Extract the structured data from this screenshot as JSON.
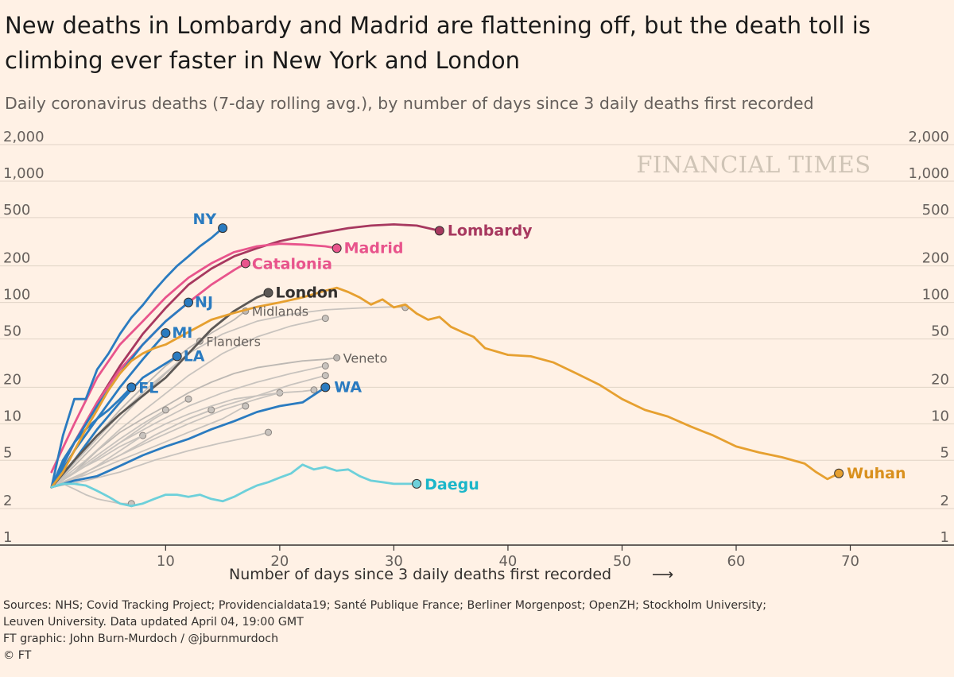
{
  "header": {
    "title": "New deaths in Lombardy and Madrid are flattening off, but the death toll is climbing ever faster in New York and London",
    "subtitle": "Daily coronavirus deaths (7-day rolling avg.), by number of days since 3 daily deaths first recorded"
  },
  "footer": {
    "xlabel": "Number of days since 3 daily deaths first recorded",
    "arrow": "⟶",
    "source_line1": "Sources: NHS; Covid Tracking Project; Providencialdata19; Santé Publique France; Berliner Morgenpost; OpenZH; Stockholm University;",
    "source_line2": "Leuven University. Data updated April 04, 19:00 GMT",
    "credit": "FT graphic: John Burn-Murdoch / @jburnmurdoch",
    "copyright": "© FT"
  },
  "watermark": "FINANCIAL TIMES",
  "chart_data": {
    "type": "line",
    "y_scale": "log",
    "xlim": [
      0,
      77
    ],
    "ylim": [
      1,
      2000
    ],
    "x_ticks": [
      10,
      20,
      30,
      40,
      50,
      60,
      70
    ],
    "y_ticks": [
      1,
      2,
      5,
      10,
      20,
      50,
      100,
      200,
      500,
      1000,
      2000
    ],
    "y_tick_labels": [
      "1",
      "2",
      "5",
      "10",
      "20",
      "50",
      "100",
      "200",
      "500",
      "1,000",
      "2,000"
    ],
    "grid": "horizontal",
    "series": [
      {
        "name": "Lombardy",
        "color": "#a7385f",
        "label_color": "#a7385f",
        "bold": true,
        "emph": true,
        "x": [
          0,
          2,
          4,
          6,
          8,
          10,
          12,
          14,
          16,
          18,
          20,
          22,
          24,
          26,
          28,
          30,
          32,
          34
        ],
        "y": [
          3,
          7,
          15,
          30,
          55,
          90,
          140,
          190,
          240,
          280,
          320,
          350,
          380,
          410,
          430,
          440,
          430,
          390
        ]
      },
      {
        "name": "Madrid",
        "color": "#e8548c",
        "label_color": "#e8548c",
        "bold": true,
        "emph": true,
        "x": [
          0,
          2,
          4,
          6,
          8,
          10,
          12,
          14,
          16,
          18,
          20,
          22,
          24,
          25
        ],
        "y": [
          4,
          10,
          24,
          45,
          70,
          110,
          160,
          210,
          260,
          290,
          305,
          300,
          290,
          280
        ]
      },
      {
        "name": "Catalonia",
        "color": "#e8548c",
        "label_color": "#e8548c",
        "bold": true,
        "emph": true,
        "x": [
          0,
          2,
          4,
          6,
          8,
          10,
          12,
          14,
          16,
          17
        ],
        "y": [
          3,
          7,
          15,
          28,
          45,
          70,
          100,
          140,
          185,
          210
        ]
      },
      {
        "name": "NY",
        "color": "#2a7bc0",
        "label_color": "#2a7bc0",
        "bold": true,
        "emph": true,
        "x": [
          0,
          1,
          2,
          3,
          4,
          5,
          6,
          7,
          8,
          9,
          10,
          11,
          12,
          13,
          14,
          15
        ],
        "y": [
          3,
          8,
          16,
          16,
          28,
          38,
          55,
          75,
          95,
          125,
          160,
          200,
          240,
          290,
          340,
          410
        ]
      },
      {
        "name": "NJ",
        "color": "#2a7bc0",
        "label_color": "#2a7bc0",
        "bold": true,
        "emph": true,
        "x": [
          0,
          2,
          4,
          6,
          8,
          10,
          12
        ],
        "y": [
          3,
          7,
          14,
          26,
          45,
          70,
          100
        ]
      },
      {
        "name": "MI",
        "color": "#2a7bc0",
        "label_color": "#2a7bc0",
        "bold": true,
        "emph": true,
        "x": [
          0,
          2,
          4,
          6,
          8,
          10
        ],
        "y": [
          3,
          6,
          11,
          20,
          34,
          56
        ]
      },
      {
        "name": "LA",
        "color": "#2a7bc0",
        "label_color": "#2a7bc0",
        "bold": true,
        "emph": true,
        "x": [
          0,
          2,
          4,
          6,
          8,
          11
        ],
        "y": [
          3,
          5,
          9,
          15,
          24,
          36
        ]
      },
      {
        "name": "FL",
        "color": "#2a7bc0",
        "label_color": "#2a7bc0",
        "bold": true,
        "emph": true,
        "x": [
          0,
          1,
          2,
          3,
          4,
          5,
          6,
          7
        ],
        "y": [
          3,
          5,
          7,
          9,
          11,
          13,
          16,
          20
        ]
      },
      {
        "name": "WA",
        "color": "#2a7bc0",
        "label_color": "#2a7bc0",
        "bold": true,
        "emph": true,
        "x": [
          0,
          2,
          4,
          6,
          8,
          10,
          12,
          14,
          16,
          18,
          20,
          22,
          24
        ],
        "y": [
          3,
          3.4,
          3.7,
          4.5,
          5.5,
          6.5,
          7.5,
          9,
          10.5,
          12.5,
          14,
          15,
          20
        ]
      },
      {
        "name": "London",
        "color": "#5c5855",
        "label_color": "#33302e",
        "bold": true,
        "emph": true,
        "x": [
          0,
          2,
          4,
          6,
          8,
          10,
          12,
          14,
          16,
          18,
          19
        ],
        "y": [
          3,
          5,
          8,
          12,
          17,
          24,
          38,
          60,
          85,
          110,
          120
        ]
      },
      {
        "name": "Wuhan",
        "color": "#e6a030",
        "label_color": "#d9901d",
        "bold": true,
        "emph": true,
        "x": [
          0,
          1,
          2,
          3,
          4,
          5,
          6,
          7,
          8,
          9,
          10,
          12,
          14,
          16,
          18,
          20,
          22,
          24,
          25,
          26,
          27,
          28,
          29,
          30,
          31,
          32,
          33,
          34,
          35,
          36,
          37,
          38,
          40,
          42,
          44,
          46,
          48,
          50,
          52,
          54,
          56,
          58,
          60,
          62,
          64,
          66,
          67,
          68,
          69
        ],
        "y": [
          3,
          4,
          6,
          9,
          13,
          19,
          26,
          33,
          38,
          42,
          45,
          57,
          72,
          82,
          92,
          100,
          110,
          125,
          132,
          122,
          110,
          96,
          106,
          91,
          96,
          81,
          72,
          76,
          63,
          57,
          52,
          42,
          37,
          36,
          32,
          26,
          21,
          16,
          13,
          11.5,
          9.5,
          8,
          6.5,
          5.8,
          5.3,
          4.7,
          4,
          3.5,
          3.9
        ]
      },
      {
        "name": "Daegu",
        "color": "#6dd0da",
        "label_color": "#1bb6c9",
        "bold": true,
        "emph": true,
        "x": [
          0,
          1,
          2,
          3,
          4,
          5,
          6,
          7,
          8,
          9,
          10,
          11,
          12,
          13,
          14,
          15,
          16,
          17,
          18,
          19,
          20,
          21,
          22,
          23,
          24,
          25,
          26,
          27,
          28,
          29,
          30,
          31,
          32
        ],
        "y": [
          3,
          3.2,
          3.2,
          3.1,
          2.8,
          2.5,
          2.2,
          2.1,
          2.2,
          2.4,
          2.6,
          2.6,
          2.5,
          2.6,
          2.4,
          2.3,
          2.5,
          2.8,
          3.1,
          3.3,
          3.6,
          3.9,
          4.6,
          4.2,
          4.4,
          4.1,
          4.2,
          3.7,
          3.4,
          3.3,
          3.2,
          3.2,
          3.2
        ]
      },
      {
        "name": "Midlands",
        "color": "#bdb8b3",
        "label_color": "#66605c",
        "bold": false,
        "emph": false,
        "x": [
          0,
          2,
          4,
          6,
          8,
          10,
          12,
          14,
          16,
          17
        ],
        "y": [
          3,
          5,
          8,
          13,
          20,
          30,
          42,
          56,
          72,
          85
        ]
      },
      {
        "name": "Flanders",
        "color": "#bdb8b3",
        "label_color": "#66605c",
        "bold": false,
        "emph": false,
        "x": [
          0,
          2,
          4,
          6,
          8,
          10,
          12,
          13
        ],
        "y": [
          3,
          4.5,
          7,
          11,
          17,
          26,
          38,
          48
        ]
      },
      {
        "name": "Veneto",
        "color": "#bdb8b3",
        "label_color": "#66605c",
        "bold": false,
        "emph": false,
        "x": [
          0,
          2,
          4,
          6,
          8,
          10,
          12,
          14,
          16,
          18,
          20,
          22,
          24,
          25
        ],
        "y": [
          3,
          4,
          6,
          8.5,
          11,
          14,
          18,
          22,
          26,
          29,
          31,
          33,
          34,
          35
        ]
      },
      {
        "name": "",
        "color": "#c8c3be",
        "label_color": "#66605c",
        "bold": false,
        "emph": false,
        "x": [
          0,
          3,
          6,
          9,
          12,
          15,
          18,
          21,
          24,
          27,
          30,
          31
        ],
        "y": [
          3,
          6,
          12,
          22,
          38,
          55,
          70,
          80,
          87,
          90,
          92,
          91
        ]
      },
      {
        "name": "",
        "color": "#c8c3be",
        "label_color": "#66605c",
        "bold": false,
        "emph": false,
        "x": [
          0,
          3,
          6,
          9,
          12,
          15,
          18,
          21,
          24
        ],
        "y": [
          3,
          5,
          9,
          15,
          25,
          38,
          52,
          64,
          74
        ]
      },
      {
        "name": "",
        "color": "#c8c3be",
        "label_color": "#66605c",
        "bold": false,
        "emph": false,
        "x": [
          0,
          3,
          6,
          9,
          12,
          15,
          18,
          21,
          24
        ],
        "y": [
          3,
          4.5,
          7,
          10,
          14,
          18,
          22,
          26,
          30
        ]
      },
      {
        "name": "",
        "color": "#c8c3be",
        "label_color": "#66605c",
        "bold": false,
        "emph": false,
        "x": [
          0,
          3,
          6,
          9,
          12,
          15,
          18,
          21,
          24
        ],
        "y": [
          3,
          4,
          5.5,
          8,
          11,
          14,
          17,
          21,
          25
        ]
      },
      {
        "name": "",
        "color": "#c8c3be",
        "label_color": "#66605c",
        "bold": false,
        "emph": false,
        "x": [
          0,
          3,
          6,
          9,
          12,
          15,
          18,
          20
        ],
        "y": [
          3,
          4,
          5.5,
          7.5,
          10,
          13,
          16,
          18
        ]
      },
      {
        "name": "",
        "color": "#c8c3be",
        "label_color": "#66605c",
        "bold": false,
        "emph": false,
        "x": [
          0,
          3,
          6,
          9,
          12,
          15,
          17
        ],
        "y": [
          3,
          3.8,
          5,
          6.5,
          8.5,
          11,
          14
        ]
      },
      {
        "name": "",
        "color": "#c8c3be",
        "label_color": "#66605c",
        "bold": false,
        "emph": false,
        "x": [
          0,
          3,
          6,
          9,
          12,
          15,
          18,
          19
        ],
        "y": [
          3,
          3.4,
          4,
          5,
          6,
          7,
          8,
          8.5
        ]
      },
      {
        "name": "",
        "color": "#c8c3be",
        "label_color": "#66605c",
        "bold": false,
        "emph": false,
        "x": [
          0,
          3,
          6,
          9,
          12,
          14
        ],
        "y": [
          3,
          4,
          5.5,
          8,
          11,
          13
        ]
      },
      {
        "name": "",
        "color": "#c8c3be",
        "label_color": "#66605c",
        "bold": false,
        "emph": false,
        "x": [
          0,
          3,
          6,
          9,
          12
        ],
        "y": [
          3,
          4.5,
          7,
          11,
          16
        ]
      },
      {
        "name": "",
        "color": "#c8c3be",
        "label_color": "#66605c",
        "bold": false,
        "emph": false,
        "x": [
          0,
          2,
          4,
          6,
          8,
          10
        ],
        "y": [
          3,
          4,
          5.5,
          7.5,
          10,
          13
        ]
      },
      {
        "name": "",
        "color": "#c8c3be",
        "label_color": "#66605c",
        "bold": false,
        "emph": false,
        "x": [
          0,
          2,
          4,
          6,
          8
        ],
        "y": [
          3,
          3.5,
          4.5,
          6,
          8
        ]
      },
      {
        "name": "",
        "color": "#c8c3be",
        "label_color": "#66605c",
        "bold": false,
        "emph": false,
        "x": [
          0,
          1,
          2,
          3,
          4,
          5,
          6,
          7
        ],
        "y": [
          3,
          3.2,
          2.9,
          2.6,
          2.4,
          2.3,
          2.2,
          2.2
        ]
      },
      {
        "name": "",
        "color": "#c8c3be",
        "label_color": "#66605c",
        "bold": false,
        "emph": false,
        "x": [
          0,
          2,
          4,
          6,
          8,
          10,
          12,
          14,
          16,
          18,
          20,
          22,
          23
        ],
        "y": [
          3,
          4,
          5,
          6.5,
          8,
          10,
          12,
          14,
          16,
          17,
          18,
          18.5,
          19
        ]
      }
    ]
  }
}
